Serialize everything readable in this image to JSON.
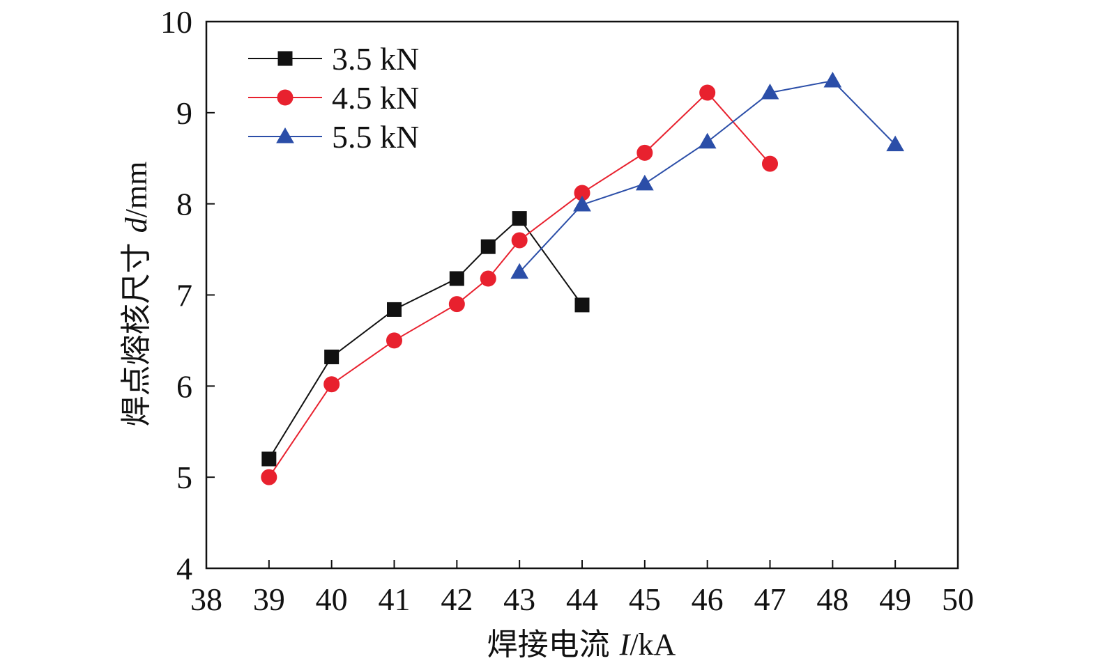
{
  "chart_data": {
    "type": "line",
    "xlabel_prefix": "焊接电流 ",
    "xlabel_var": "I",
    "xlabel_unit": "/kA",
    "ylabel_prefix": "焊点熔核尺寸 ",
    "ylabel_var": "d",
    "ylabel_unit": "/mm",
    "xlim": [
      38,
      50
    ],
    "ylim": [
      4,
      10
    ],
    "xticks": [
      38,
      39,
      40,
      41,
      42,
      43,
      44,
      45,
      46,
      47,
      48,
      49,
      50
    ],
    "yticks": [
      4,
      5,
      6,
      7,
      8,
      9,
      10
    ],
    "legend_position": "top-left",
    "grid": false,
    "series": [
      {
        "name": "3.5 kN",
        "color": "#111111",
        "marker": "square",
        "x": [
          39,
          40,
          41,
          42,
          42.5,
          43,
          44
        ],
        "y": [
          5.2,
          6.32,
          6.84,
          7.18,
          7.53,
          7.84,
          6.89
        ]
      },
      {
        "name": "4.5 kN",
        "color": "#e8212e",
        "marker": "circle",
        "x": [
          39,
          40,
          41,
          42,
          42.5,
          43,
          44,
          45,
          46,
          47
        ],
        "y": [
          5.0,
          6.02,
          6.5,
          6.9,
          7.18,
          7.6,
          8.12,
          8.56,
          9.22,
          8.44
        ]
      },
      {
        "name": "5.5 kN",
        "color": "#2b4ea8",
        "marker": "triangle",
        "x": [
          43,
          44,
          45,
          46,
          47,
          48,
          49
        ],
        "y": [
          7.25,
          7.99,
          8.22,
          8.68,
          9.22,
          9.35,
          8.65
        ]
      }
    ]
  }
}
